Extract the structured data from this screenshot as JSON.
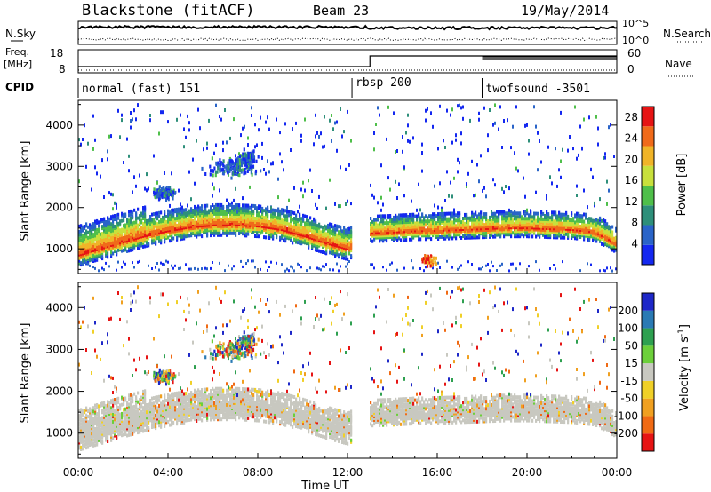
{
  "header": {
    "station": "Blackstone (fitACF)",
    "beam": "Beam 23",
    "date": "19/May/2014"
  },
  "noise_panel": {
    "left_label": "N.Sky",
    "right_label": "N.Search",
    "tick_high": "10^5",
    "tick_low": "10^0"
  },
  "freq_panel": {
    "left_label_1": "Freq.",
    "left_label_2": "[MHz]",
    "right_label": "Nave",
    "left_ticks": [
      "18",
      "8"
    ],
    "right_ticks": [
      "60",
      "0"
    ]
  },
  "cpid_panel": {
    "label": "CPID",
    "programs": [
      {
        "name": "normal (fast) 151",
        "start_hour": 0
      },
      {
        "name": "rbsp 200",
        "start_hour": 12.2
      },
      {
        "name": "twofsound -3501",
        "start_hour": 18.0
      }
    ]
  },
  "chart_data": [
    {
      "type": "heatmap",
      "title": "Power",
      "xlabel": "Time UT",
      "ylabel": "Slant Range [km]",
      "xlim": [
        0,
        24
      ],
      "ylim": [
        400,
        4600
      ],
      "x_ticks": [
        "00:00",
        "04:00",
        "08:00",
        "12:00",
        "16:00",
        "20:00",
        "00:00"
      ],
      "y_ticks": [
        1000,
        2000,
        3000,
        4000
      ],
      "colorbar": {
        "label": "Power [dB]",
        "ticks": [
          4,
          8,
          12,
          16,
          20,
          24,
          28
        ],
        "range": [
          0,
          30
        ],
        "colors": [
          "#1428f0",
          "#2a64c8",
          "#2e8f7a",
          "#4fbf4a",
          "#c8e03c",
          "#f0b428",
          "#f06a1a",
          "#e61414"
        ]
      },
      "band_center_km": [
        [
          0,
          860
        ],
        [
          1,
          1020
        ],
        [
          2,
          1180
        ],
        [
          3,
          1330
        ],
        [
          4,
          1450
        ],
        [
          5,
          1540
        ],
        [
          6,
          1590
        ],
        [
          7,
          1590
        ],
        [
          8,
          1560
        ],
        [
          9,
          1480
        ],
        [
          10,
          1330
        ],
        [
          11,
          1150
        ],
        [
          12,
          1000
        ],
        [
          12.2,
          null
        ],
        [
          13,
          1380
        ],
        [
          14,
          1400
        ],
        [
          15,
          1430
        ],
        [
          16,
          1440
        ],
        [
          17,
          1460
        ],
        [
          18,
          1480
        ],
        [
          19,
          1500
        ],
        [
          20,
          1500
        ],
        [
          21,
          1480
        ],
        [
          22,
          1460
        ],
        [
          23,
          1400
        ],
        [
          24,
          1100
        ]
      ]
    },
    {
      "type": "heatmap",
      "title": "Velocity",
      "xlabel": "Time UT",
      "ylabel": "Slant Range [km]",
      "xlim": [
        0,
        24
      ],
      "ylim": [
        400,
        4600
      ],
      "x_ticks": [
        "00:00",
        "04:00",
        "08:00",
        "12:00",
        "16:00",
        "20:00",
        "00:00"
      ],
      "y_ticks": [
        1000,
        2000,
        3000,
        4000
      ],
      "colorbar": {
        "label": "Velocity [m s^-1]",
        "ticks": [
          200,
          100,
          50,
          15,
          -15,
          -50,
          -100,
          -200
        ],
        "colors": [
          "#1e28c8",
          "#2a7ab4",
          "#2ea050",
          "#6ccf3a",
          "#c8c8c0",
          "#f0d028",
          "#f0a020",
          "#f06a14",
          "#e61414"
        ]
      }
    }
  ]
}
